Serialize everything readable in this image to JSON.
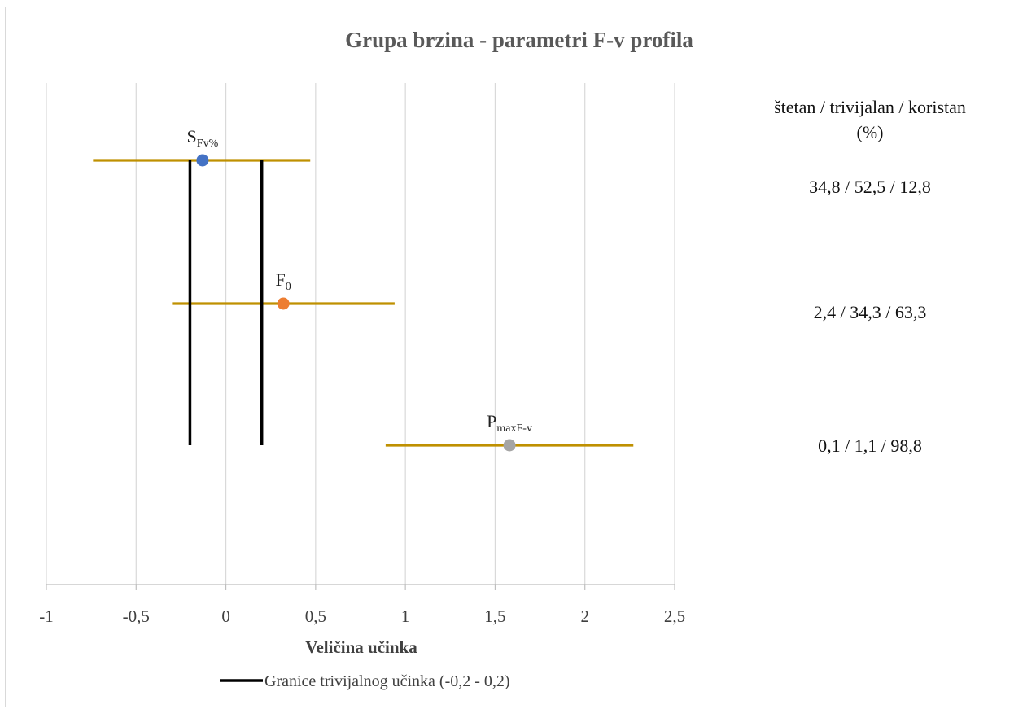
{
  "chart_data": {
    "type": "scatter",
    "title": "Grupa brzina - parametri F-v profila",
    "xlabel": "Veličina učinka",
    "ylabel": "",
    "xlim": [
      -1,
      2.5
    ],
    "x_ticks": [
      "-1",
      "-0,5",
      "0",
      "0,5",
      "1",
      "1,5",
      "2",
      "2,5"
    ],
    "x_tick_values": [
      -1,
      -0.5,
      0,
      0.5,
      1,
      1.5,
      2,
      2.5
    ],
    "grid": "vertical",
    "points": [
      {
        "base": "S",
        "sub": "Fv%",
        "x": -0.13,
        "lo": -0.74,
        "hi": 0.47,
        "color": "#4472c4",
        "summary": "34,8 / 52,5 / 12,8"
      },
      {
        "base": "F",
        "sub": "0",
        "x": 0.32,
        "lo": -0.3,
        "hi": 0.94,
        "color": "#ed7d31",
        "summary": "2,4 / 34,3 / 63,3"
      },
      {
        "base": "P",
        "sub": "maxF-v",
        "x": 1.58,
        "lo": 0.89,
        "hi": 2.27,
        "color": "#a5a5a5",
        "summary": "0,1 / 1,1 / 98,8"
      }
    ],
    "interval_color": "#bf9000",
    "trivial_bounds": {
      "lower": -0.2,
      "upper": 0.2,
      "color": "#000000",
      "legend": "Granice trivijalnog učinka (-0,2 - 0,2)"
    },
    "legend_position": "bottom",
    "side_header_line1": "štetan / trivijalan / koristan",
    "side_header_line2": "(%)"
  }
}
